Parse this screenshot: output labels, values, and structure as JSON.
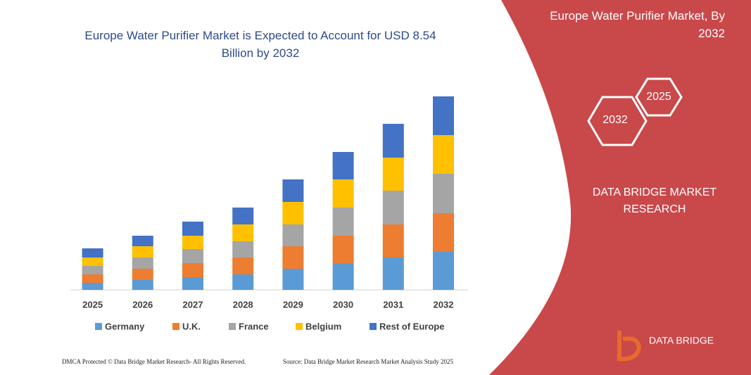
{
  "chart_data": {
    "type": "stacked-bar",
    "title": "Europe Water Purifier Market is Expected to Account for USD 8.54 Billion by 2032",
    "categories": [
      "2025",
      "2026",
      "2027",
      "2028",
      "2029",
      "2030",
      "2031",
      "2032"
    ],
    "series": [
      {
        "name": "Germany",
        "color": "#5b9bd5",
        "values": [
          10,
          14,
          18,
          22,
          30,
          38,
          46,
          54
        ]
      },
      {
        "name": "U.K.",
        "color": "#ed7d31",
        "values": [
          12,
          16,
          20,
          24,
          32,
          39,
          47,
          55
        ]
      },
      {
        "name": "France",
        "color": "#a5a5a5",
        "values": [
          12,
          16,
          20,
          23,
          31,
          40,
          48,
          56
        ]
      },
      {
        "name": "Belgium",
        "color": "#ffc000",
        "values": [
          12,
          16,
          19,
          24,
          32,
          40,
          47,
          55
        ]
      },
      {
        "name": "Rest of Europe",
        "color": "#4472c4",
        "values": [
          13,
          15,
          20,
          24,
          32,
          39,
          48,
          55
        ]
      }
    ]
  },
  "panel": {
    "title": "Europe Water Purifier Market, By 2032",
    "hex_start": "2025",
    "hex_end": "2032",
    "brand": "DATA BRIDGE MARKET RESEARCH"
  },
  "logo": {
    "text": "DATA BRIDGE"
  },
  "footer": {
    "left": "DMCA Protected © Data Bridge Market Research- All Rights Reserved.",
    "right": "Source: Data Bridge Market Research Market Analysis Study 2025"
  }
}
